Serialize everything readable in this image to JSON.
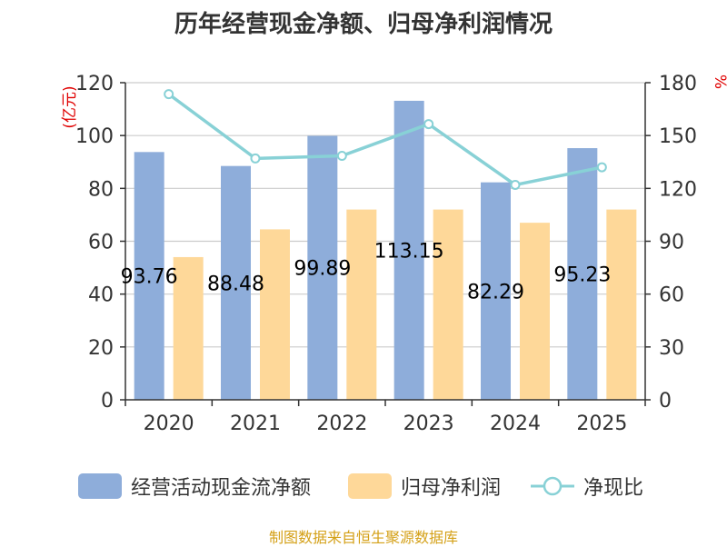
{
  "chart_data": {
    "type": "bar",
    "title": "历年经营现金净额、归母净利润情况",
    "categories": [
      "2020",
      "2021",
      "2022",
      "2023",
      "2024",
      "2025"
    ],
    "series": [
      {
        "name": "经营活动现金流净额",
        "type": "bar",
        "axis": "left",
        "color": "#8eadda",
        "values": [
          93.76,
          88.48,
          99.89,
          113.15,
          82.29,
          95.23
        ],
        "labels": [
          "93.76",
          "88.48",
          "99.89",
          "113.15",
          "82.29",
          "95.23"
        ]
      },
      {
        "name": "归母净利润",
        "type": "bar",
        "axis": "left",
        "color": "#fed899",
        "values": [
          54.0,
          64.5,
          72.0,
          72.0,
          67.0,
          72.0
        ]
      },
      {
        "name": "净现比",
        "type": "line",
        "axis": "right",
        "color": "#88d1d6",
        "values": [
          173.5,
          137.0,
          138.5,
          156.5,
          122.0,
          132.0
        ]
      }
    ],
    "ylabel": "(亿元)",
    "ylim": [
      0,
      120
    ],
    "yticks": [
      0,
      20,
      40,
      60,
      80,
      100,
      120
    ],
    "y2label": "%",
    "y2lim": [
      0,
      180
    ],
    "y2ticks": [
      0,
      30,
      60,
      90,
      120,
      150,
      180
    ],
    "grid": true,
    "legend_position": "bottom"
  },
  "colors": {
    "title": "#333333",
    "axis": "#333333",
    "grid": "#cccccc",
    "unit_label": "#e00000",
    "source": "#d4a017"
  },
  "source_text": "制图数据来自恒生聚源数据库"
}
